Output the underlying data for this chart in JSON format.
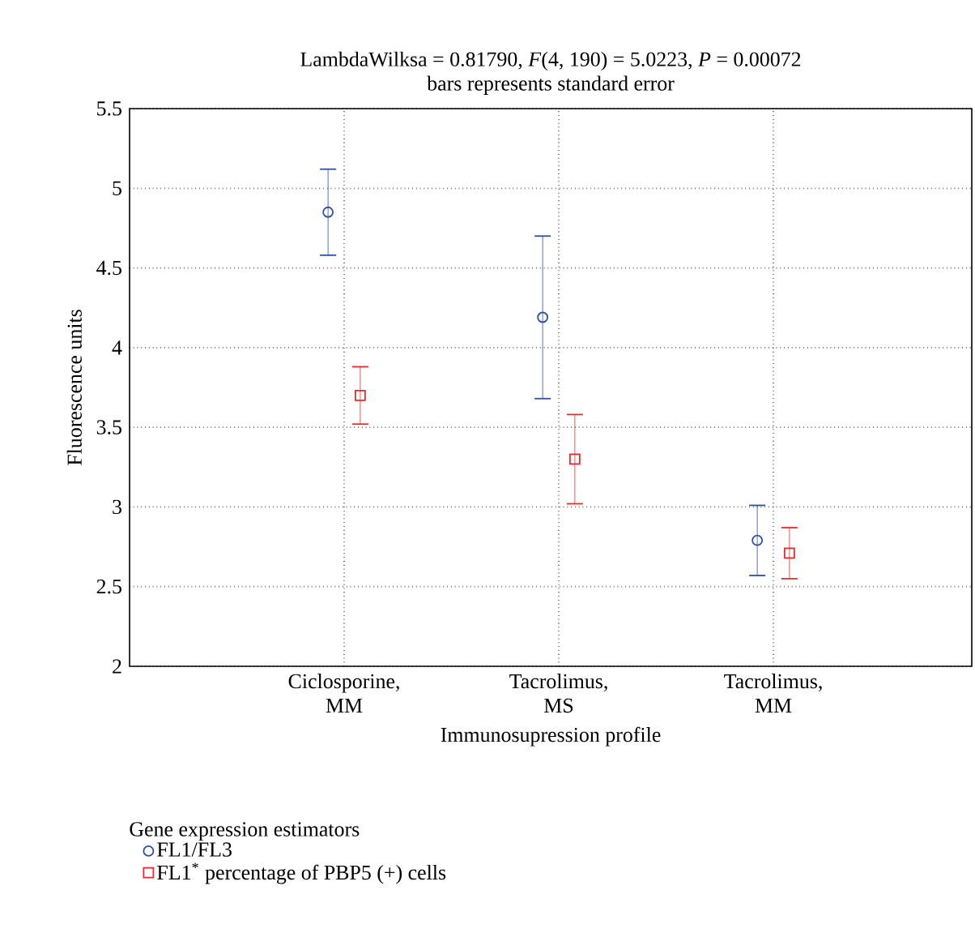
{
  "chart_data": {
    "type": "scatter",
    "title": "LambdaWilksa  = 0.81790, *F*(4, 190) = 5.0223, *P* = 0.00072",
    "subtitle": "bars represents standard error",
    "xlabel": "Immunosupression profile",
    "ylabel": "Fluorescence units",
    "legend_title": "Gene expression estimators",
    "categories": [
      "Ciclosporine, MM",
      "Tacrolimus, MS",
      "Tacrolimus, MM"
    ],
    "series": [
      {
        "name": "FL1/FL3",
        "color": "#2e4fa3",
        "marker": "circle",
        "values": [
          4.85,
          4.19,
          2.79
        ],
        "errors": [
          0.27,
          0.51,
          0.22
        ]
      },
      {
        "name": "FL1$^{*}$ percentage of PBP5 (+) cells",
        "color": "#ee2a2a",
        "marker": "square",
        "values": [
          3.7,
          3.3,
          2.71
        ],
        "errors": [
          0.18,
          0.28,
          0.16
        ]
      }
    ],
    "ylim": [
      2,
      5.5
    ],
    "yticks": [
      2,
      2.5,
      3,
      3.5,
      4,
      4.5,
      5,
      5.5
    ],
    "grid": true,
    "legend": "bottom left"
  }
}
